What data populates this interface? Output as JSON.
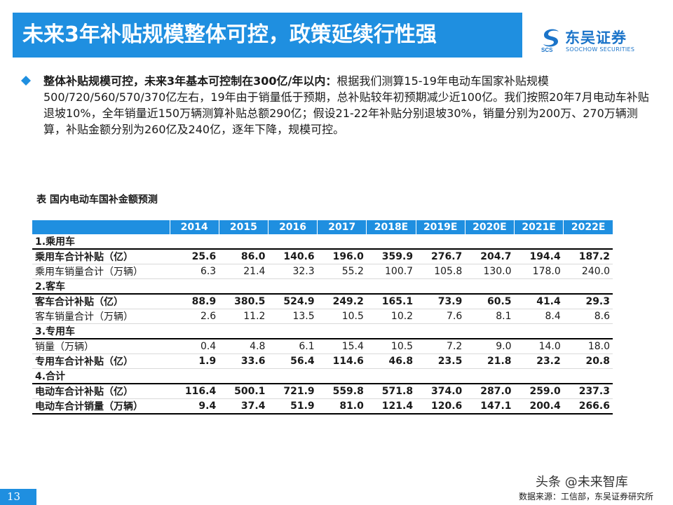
{
  "header": {
    "title": "未来3年补贴规模整体可控，政策延续行性强",
    "logo_cn": "东吴证券",
    "logo_en": "SOOCHOW SECURITIES",
    "logo_mark_text": "SCS"
  },
  "body": {
    "lead": "整体补贴规模可控，未来3年基本可控制在300亿/年以内：",
    "text": "根据我们测算15-19年电动车国家补贴规模500/720/560/570/370亿左右，19年由于销量低于预期，总补贴较年初预期减少近100亿。我们按照20年7月电动车补贴退坡10%，全年销量近150万辆测算补贴总额290亿；假设21-22年补贴分别退坡30%，销量分别为200万、270万辆测算，补贴金额分别为260亿及240亿，逐年下降，规模可控。"
  },
  "table": {
    "caption": "表  国内电动车国补金额预测",
    "years": [
      "2014",
      "2015",
      "2016",
      "2017",
      "2018E",
      "2019E",
      "2020E",
      "2021E",
      "2022E"
    ],
    "sections": [
      {
        "title": "1.乘用车",
        "rows": [
          {
            "label": "乘用车合计补贴（亿）",
            "bold": true,
            "values": [
              "25.6",
              "86.0",
              "140.6",
              "196.0",
              "359.9",
              "276.7",
              "204.7",
              "194.4",
              "187.2"
            ]
          },
          {
            "label": "乘用车销量合计（万辆）",
            "bold": false,
            "values": [
              "6.3",
              "21.4",
              "32.3",
              "55.2",
              "100.7",
              "105.8",
              "130.0",
              "178.0",
              "240.0"
            ]
          }
        ]
      },
      {
        "title": "2.客车",
        "rows": [
          {
            "label": "客车合计补贴（亿）",
            "bold": true,
            "values": [
              "88.9",
              "380.5",
              "524.9",
              "249.2",
              "165.1",
              "73.9",
              "60.5",
              "41.4",
              "29.3"
            ]
          },
          {
            "label": "客车销量合计（万辆）",
            "bold": false,
            "values": [
              "2.6",
              "11.2",
              "13.5",
              "10.5",
              "10.2",
              "7.6",
              "8.1",
              "8.4",
              "8.6"
            ]
          }
        ]
      },
      {
        "title": "3.专用车",
        "rows": [
          {
            "label": "销量（万辆）",
            "bold": false,
            "values": [
              "0.4",
              "4.8",
              "6.1",
              "15.4",
              "10.5",
              "7.2",
              "9.0",
              "14.0",
              "18.0"
            ]
          },
          {
            "label": "专用车合计补贴（亿）",
            "bold": true,
            "values": [
              "1.9",
              "33.6",
              "56.4",
              "114.6",
              "46.8",
              "23.5",
              "21.8",
              "23.2",
              "20.8"
            ]
          }
        ]
      },
      {
        "title": "4.合计",
        "rows": [
          {
            "label": "电动车合计补贴（亿）",
            "bold": true,
            "values": [
              "116.4",
              "500.1",
              "721.9",
              "559.8",
              "571.8",
              "374.0",
              "287.0",
              "259.0",
              "237.3"
            ]
          },
          {
            "label": "电动车合计销量（万辆）",
            "bold": true,
            "values": [
              "9.4",
              "37.4",
              "51.9",
              "81.0",
              "121.4",
              "120.6",
              "147.1",
              "200.4",
              "266.6"
            ]
          }
        ]
      }
    ]
  },
  "footer": {
    "page_number": "13",
    "source": "数据来源：工信部，东吴证券研究所",
    "watermark": "头条 @未来智库"
  },
  "colors": {
    "accent": "#1f8fe0",
    "logo": "#1b74c9"
  },
  "icons": {
    "bullet": "diamond-bullet-icon",
    "logo": "soochow-logo-mark-icon"
  }
}
